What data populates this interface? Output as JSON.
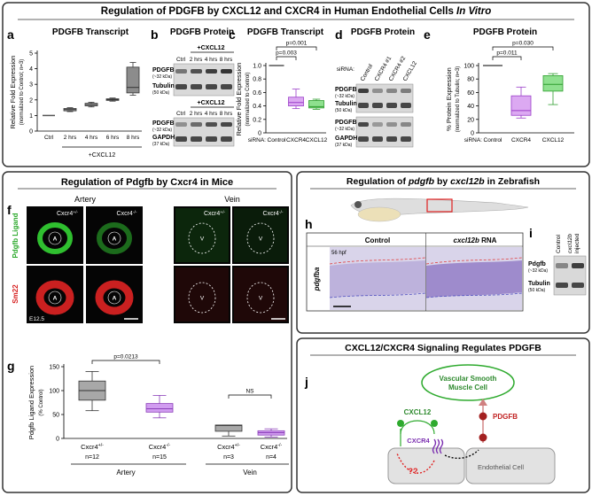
{
  "header": {
    "title_parts": [
      {
        "text": "Regulation of PDGFB by CXCL12 and CXCR4 in Human Endothelial Cells "
      },
      {
        "text": "In Vitro",
        "italic": true
      }
    ]
  },
  "chart_data": [
    {
      "type": "box",
      "letter": "a",
      "title": "PDGFB Transcript",
      "ylabel": "Relative Fold Expression",
      "ylabel2": "(normalized to Control; n=3)",
      "categories": [
        "Ctrl",
        "2 hrs",
        "4 hrs",
        "6 hrs",
        "8 hrs"
      ],
      "group_label": "+CXCL12",
      "ylim": [
        0,
        5
      ],
      "yticks": [
        0,
        1,
        2,
        3,
        4,
        5
      ],
      "colors": [
        "#555555",
        "#b0b0b0",
        "#b0b0b0",
        "#b0b0b0",
        "#8c8c8c"
      ],
      "boxes": [
        {
          "value": 1
        },
        {
          "min": 1.25,
          "q1": 1.3,
          "median": 1.38,
          "q3": 1.45,
          "max": 1.5
        },
        {
          "min": 1.55,
          "q1": 1.62,
          "median": 1.7,
          "q3": 1.78,
          "max": 1.85
        },
        {
          "min": 1.92,
          "q1": 1.97,
          "median": 2.02,
          "q3": 2.07,
          "max": 2.12
        },
        {
          "min": 2.3,
          "q1": 2.45,
          "median": 2.8,
          "q3": 4.1,
          "max": 4.4
        }
      ]
    },
    {
      "type": "box",
      "letter": "c",
      "title": "PDGFB Transcript",
      "ylabel": "Relative Fold Expression",
      "ylabel2": "(normalized to Control)",
      "category_prefix": "siRNA:",
      "categories": [
        "Control",
        "CXCR4",
        "CXCL12"
      ],
      "ylim": [
        0,
        1
      ],
      "yticks": [
        0,
        0.2,
        0.4,
        0.6,
        0.8,
        {
          "value": 1,
          "label": "1.0"
        }
      ],
      "colors": [
        "#555555",
        "#dca9f2",
        "#8ee08e"
      ],
      "edge_colors": [
        "#333333",
        "#9b3fc9",
        "#2e9e2e"
      ],
      "boxes": [
        {
          "value": 1
        },
        {
          "min": 0.36,
          "q1": 0.4,
          "median": 0.45,
          "q3": 0.53,
          "max": 0.65
        },
        {
          "min": 0.35,
          "q1": 0.37,
          "median": 0.39,
          "q3": 0.48,
          "max": 0.5
        }
      ],
      "pvalues": [
        "p=0.003",
        "p=0.001"
      ]
    },
    {
      "type": "box",
      "letter": "e",
      "title": "PDGFB Protein",
      "ylabel": "% Protein Expression",
      "ylabel2": "(normalized to Tubulin; n=3)",
      "category_prefix": "siRNA:",
      "categories": [
        "Control",
        "CXCR4",
        "CXCL12"
      ],
      "ylim": [
        0,
        100
      ],
      "yticks": [
        0,
        20,
        40,
        60,
        80,
        100
      ],
      "colors": [
        "#555555",
        "#dca9f2",
        "#8ee08e"
      ],
      "edge_colors": [
        "#333333",
        "#9b3fc9",
        "#2e9e2e"
      ],
      "boxes": [
        {
          "value": 100
        },
        {
          "min": 22,
          "q1": 26,
          "median": 33,
          "q3": 55,
          "max": 68
        },
        {
          "min": 42,
          "q1": 62,
          "median": 72,
          "q3": 85,
          "max": 88
        }
      ],
      "pvalues": [
        "p=0.011",
        "p=0.030"
      ]
    },
    {
      "type": "box",
      "letter": "g",
      "ylabel": "Pdgfb Ligand Expression",
      "ylabel2": "(% Control)",
      "categories": [
        {
          "name": "Cxcr4",
          "sup": "+/-"
        },
        {
          "name": "Cxcr4",
          "sup": "-/-"
        },
        {
          "name": "Cxcr4",
          "sup": "+/-"
        },
        {
          "name": "Cxcr4",
          "sup": "-/-"
        }
      ],
      "n": [
        "n=12",
        "n=15",
        "n=3",
        "n=4"
      ],
      "groups": [
        "Artery",
        "Vein"
      ],
      "ylim": [
        0,
        150
      ],
      "yticks": [
        0,
        50,
        100,
        150
      ],
      "colors": [
        "#a8a8a8",
        "#d19cf0",
        "#a8a8a8",
        "#d19cf0"
      ],
      "edge_colors": [
        "#333333",
        "#8b3fb9",
        "#333333",
        "#8b3fb9"
      ],
      "boxes": [
        {
          "min": 58,
          "q1": 80,
          "median": 100,
          "q3": 120,
          "max": 140
        },
        {
          "min": 43,
          "q1": 55,
          "median": 62,
          "q3": 73,
          "max": 90
        },
        {
          "min": 5,
          "q1": 15,
          "median": 27,
          "q3": 28,
          "max": 28
        },
        {
          "min": 3,
          "q1": 7,
          "median": 12,
          "q3": 16,
          "max": 20
        }
      ],
      "pvalues": [
        "p=0.0213",
        "NS"
      ]
    }
  ],
  "blot_b": {
    "letter": "b",
    "title": "PDGFB Protein",
    "treatment": "+CXCL12",
    "lanes": [
      "Ctrl",
      "2 hrs",
      "4 hrs",
      "8 hrs"
    ],
    "rows1": [
      [
        "PDGFB",
        "(~32 kDa)"
      ],
      [
        "Tubulin",
        "(50 kDa)"
      ]
    ],
    "rows2": [
      [
        "PDGFB",
        "(~32 kDa)"
      ],
      [
        "GAPDH",
        "(37 kDa)"
      ]
    ]
  },
  "blot_d": {
    "letter": "d",
    "title": "PDGFB Protein",
    "prefix": "siRNA:",
    "lanes": [
      "Control",
      "CXCR4 #1",
      "CXCR4 #2",
      "CXCL12"
    ],
    "rows1": [
      [
        "PDGFB",
        "(~32 kDa)"
      ],
      [
        "Tubulin",
        "(50 kDa)"
      ]
    ],
    "rows2": [
      [
        "PDGFB",
        "(~32 kDa)"
      ],
      [
        "GAPDH",
        "(37 kDa)"
      ]
    ]
  },
  "mice": {
    "title": "Regulation of Pdgfb by Cxcr4 in Mice",
    "letter": "f",
    "artery": "Artery",
    "vein": "Vein",
    "genotypes": [
      {
        "name": "Cxcr4",
        "sup": "+/-"
      },
      {
        "name": "Cxcr4",
        "sup": "-/-"
      }
    ],
    "artery_mark": "A",
    "vein_mark": "V",
    "rows": [
      "Pdgfb Ligand",
      "Sm22"
    ],
    "stage": "E12.5"
  },
  "zebrafish": {
    "title_parts": [
      {
        "text": "Regulation of "
      },
      {
        "text": "pdgfb",
        "italic": true
      },
      {
        "text": " by "
      },
      {
        "text": "cxcl12b",
        "italic": true
      },
      {
        "text": " in Zebrafish"
      }
    ],
    "letter_h": "h",
    "stage": "56 hpf",
    "control": "Control",
    "treated_parts": [
      {
        "text": "cxcl12b",
        "italic": true
      },
      {
        "text": " RNA"
      }
    ],
    "probe": "pdgfba",
    "letter_i": "i",
    "lanes": [
      "Control",
      "cxcl12b",
      "injected"
    ],
    "rows": [
      [
        "Pdgfb",
        "(~32 kDa)"
      ],
      [
        "Tubulin",
        "(50 kDa)"
      ]
    ]
  },
  "signaling": {
    "title": "CXCL12/CXCR4 Signaling Regulates PDGFB",
    "letter": "j",
    "vsmc": [
      "Vascular Smooth",
      "Muscle Cell"
    ],
    "ligand": "CXCL12",
    "receptor": "CXCR4",
    "product": "PDGFB",
    "unknown": "??",
    "cell": "Endothelial Cell"
  }
}
